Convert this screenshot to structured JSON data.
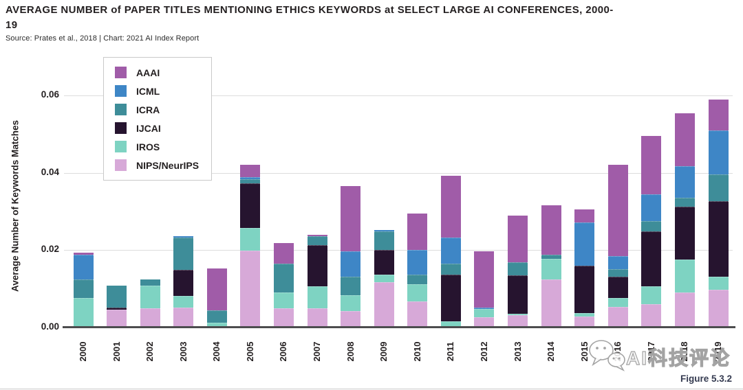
{
  "title": "AVERAGE NUMBER of PAPER TITLES MENTIONING ETHICS KEYWORDS at SELECT LARGE AI CONFERENCES, 2000-19",
  "source": "Source: Prates et al., 2018 | Chart: 2021 AI Index Report",
  "figure_label": "Figure 5.3.2",
  "watermark": {
    "icon": "wechat-icon",
    "text": "AI科技评论"
  },
  "chart_data": {
    "type": "bar",
    "stacked": true,
    "title": "AVERAGE NUMBER of PAPER TITLES MENTIONING ETHICS KEYWORDS at SELECT LARGE AI CONFERENCES, 2000-19",
    "ylabel": "Average Number of Keywords Matches",
    "xlabel": "",
    "ylim": [
      0,
      0.06
    ],
    "yticks": [
      0,
      0.02,
      0.04,
      0.06
    ],
    "ytick_labels": [
      "0.00",
      "0.02",
      "0.04",
      "0.06"
    ],
    "grid": "horizontal",
    "legend_position": "top-left-inside",
    "stack_order_bottom_to_top": [
      "NIPS/NeurIPS",
      "IROS",
      "IJCAI",
      "ICRA",
      "ICML",
      "AAAI"
    ],
    "categories": [
      "2000",
      "2001",
      "2002",
      "2003",
      "2004",
      "2005",
      "2006",
      "2007",
      "2008",
      "2009",
      "2010",
      "2011",
      "2012",
      "2013",
      "2014",
      "2015",
      "2016",
      "2017",
      "2018",
      "2019"
    ],
    "series": [
      {
        "name": "AAAI",
        "color": "#a05ca8",
        "values": [
          0.0004,
          0,
          0,
          0,
          0.0108,
          0.0032,
          0.0053,
          0.0004,
          0.0169,
          0,
          0.0094,
          0.0159,
          0.0145,
          0.012,
          0.0127,
          0.0033,
          0.0235,
          0.0151,
          0.0137,
          0.0079
        ]
      },
      {
        "name": "ICML",
        "color": "#3e86c6",
        "values": [
          0.0064,
          0,
          0,
          0.0003,
          0,
          0.0004,
          0,
          0,
          0.0065,
          0.0004,
          0.0064,
          0.0067,
          0.0004,
          0,
          0,
          0.0113,
          0.0034,
          0.0069,
          0.0081,
          0.0114
        ]
      },
      {
        "name": "ICRA",
        "color": "#3e8d99",
        "values": [
          0.0048,
          0.0057,
          0.0016,
          0.0083,
          0.0032,
          0.0011,
          0.0074,
          0.0023,
          0.0048,
          0.0049,
          0.0025,
          0.003,
          0,
          0.0034,
          0.0011,
          0,
          0.0019,
          0.0026,
          0.0023,
          0.0069
        ]
      },
      {
        "name": "IJCAI",
        "color": "#26142f",
        "values": [
          0,
          0.0005,
          0,
          0.0069,
          0,
          0.0115,
          0,
          0.0106,
          0,
          0.0064,
          0,
          0.012,
          0,
          0.0099,
          0,
          0.0122,
          0.0056,
          0.0143,
          0.0137,
          0.0195
        ]
      },
      {
        "name": "IROS",
        "color": "#7ed3c2",
        "values": [
          0.0074,
          0,
          0.0058,
          0.003,
          0.0013,
          0.006,
          0.0041,
          0.0057,
          0.0042,
          0.0018,
          0.0044,
          0.0012,
          0.0021,
          0.0004,
          0.0053,
          0.0009,
          0.0023,
          0.0046,
          0.0086,
          0.0035
        ]
      },
      {
        "name": "NIPS/NeurIPS",
        "color": "#d7a9d8",
        "values": [
          0.0003,
          0.0046,
          0.005,
          0.0051,
          0,
          0.0198,
          0.005,
          0.005,
          0.0042,
          0.0118,
          0.0067,
          0.0004,
          0.0027,
          0.0032,
          0.0125,
          0.0028,
          0.0053,
          0.006,
          0.009,
          0.0097
        ]
      }
    ],
    "totals": [
      0.0193,
      0.0108,
      0.0124,
      0.0236,
      0.0153,
      0.042,
      0.0218,
      0.024,
      0.0366,
      0.0253,
      0.0294,
      0.0392,
      0.0197,
      0.0289,
      0.0316,
      0.0305,
      0.042,
      0.0495,
      0.0554,
      0.0589
    ]
  }
}
